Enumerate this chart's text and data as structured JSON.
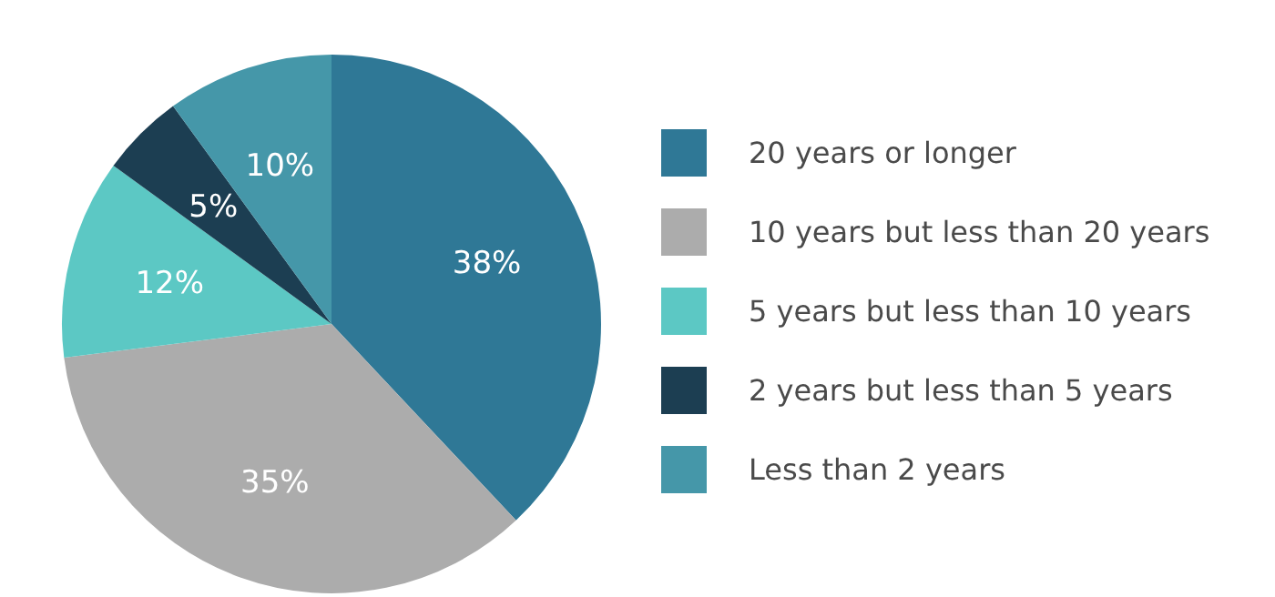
{
  "chart_data": {
    "type": "pie",
    "categories": [
      "20 years or longer",
      "10 years but less than 20 years",
      "5 years but less than 10 years",
      "2 years but less than 5 years",
      "Less than 2 years"
    ],
    "values": [
      38,
      35,
      12,
      5,
      10
    ],
    "colors": [
      "#2f7896",
      "#acacac",
      "#5cc8c4",
      "#1c3e52",
      "#4597a9"
    ],
    "value_labels": [
      "38%",
      "35%",
      "12%",
      "5%",
      "10%"
    ],
    "legend": "right"
  }
}
